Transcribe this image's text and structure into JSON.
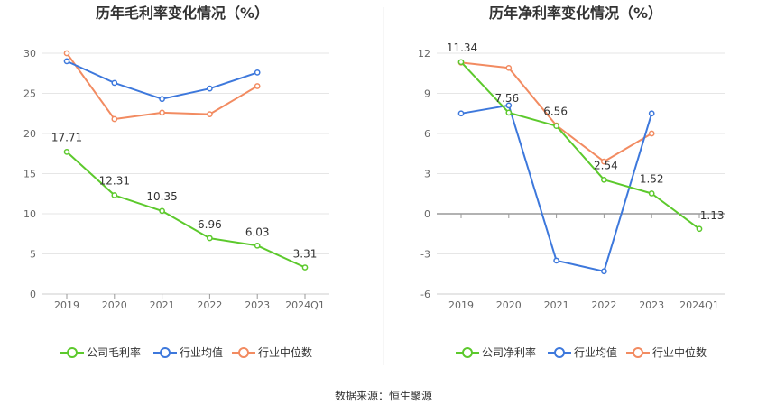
{
  "source_text": "数据来源：恒生聚源",
  "colors": {
    "company": "#5cc92c",
    "industry_avg": "#3d78dc",
    "industry_median": "#f28b61",
    "grid": "#e6e6e6",
    "axis": "#999999"
  },
  "chart_data": [
    {
      "type": "line",
      "title": "历年毛利率变化情况（%）",
      "categories": [
        "2019",
        "2020",
        "2021",
        "2022",
        "2023",
        "2024Q1"
      ],
      "ylim": [
        0,
        30
      ],
      "yticks": [
        0,
        5,
        10,
        15,
        20,
        25,
        30
      ],
      "ytick_labels": [
        "0",
        "5",
        "10",
        "15",
        "20",
        "25",
        "30"
      ],
      "legend": [
        "公司毛利率",
        "行业均值",
        "行业中位数"
      ],
      "series": [
        {
          "name": "公司毛利率",
          "key": "company",
          "values": [
            17.71,
            12.31,
            10.35,
            6.96,
            6.03,
            3.31
          ],
          "labels": [
            "17.71",
            "12.31",
            "10.35",
            "6.96",
            "6.03",
            "3.31"
          ]
        },
        {
          "name": "行业均值",
          "key": "industry_avg",
          "values": [
            29.0,
            26.3,
            24.3,
            25.6,
            27.6,
            null
          ]
        },
        {
          "name": "行业中位数",
          "key": "industry_median",
          "values": [
            30.0,
            21.8,
            22.6,
            22.4,
            25.9,
            null
          ]
        }
      ]
    },
    {
      "type": "line",
      "title": "历年净利率变化情况（%）",
      "categories": [
        "2019",
        "2020",
        "2021",
        "2022",
        "2023",
        "2024Q1"
      ],
      "ylim": [
        -6,
        12
      ],
      "yticks": [
        -6,
        -3,
        0,
        3,
        6,
        9,
        12
      ],
      "ytick_labels": [
        "-6",
        "-3",
        "0",
        "3",
        "6",
        "9",
        "12"
      ],
      "legend": [
        "公司净利率",
        "行业均值",
        "行业中位数"
      ],
      "series": [
        {
          "name": "公司净利率",
          "key": "company",
          "values": [
            11.34,
            7.56,
            6.56,
            2.54,
            1.52,
            -1.13
          ],
          "labels": [
            "11.34",
            "7.56",
            "6.56",
            "2.54",
            "1.52",
            "-1.13"
          ]
        },
        {
          "name": "行业均值",
          "key": "industry_avg",
          "values": [
            7.5,
            8.1,
            -3.5,
            -4.3,
            7.5,
            null
          ]
        },
        {
          "name": "行业中位数",
          "key": "industry_median",
          "values": [
            11.3,
            10.9,
            6.6,
            3.9,
            6.0,
            null
          ]
        }
      ]
    }
  ]
}
